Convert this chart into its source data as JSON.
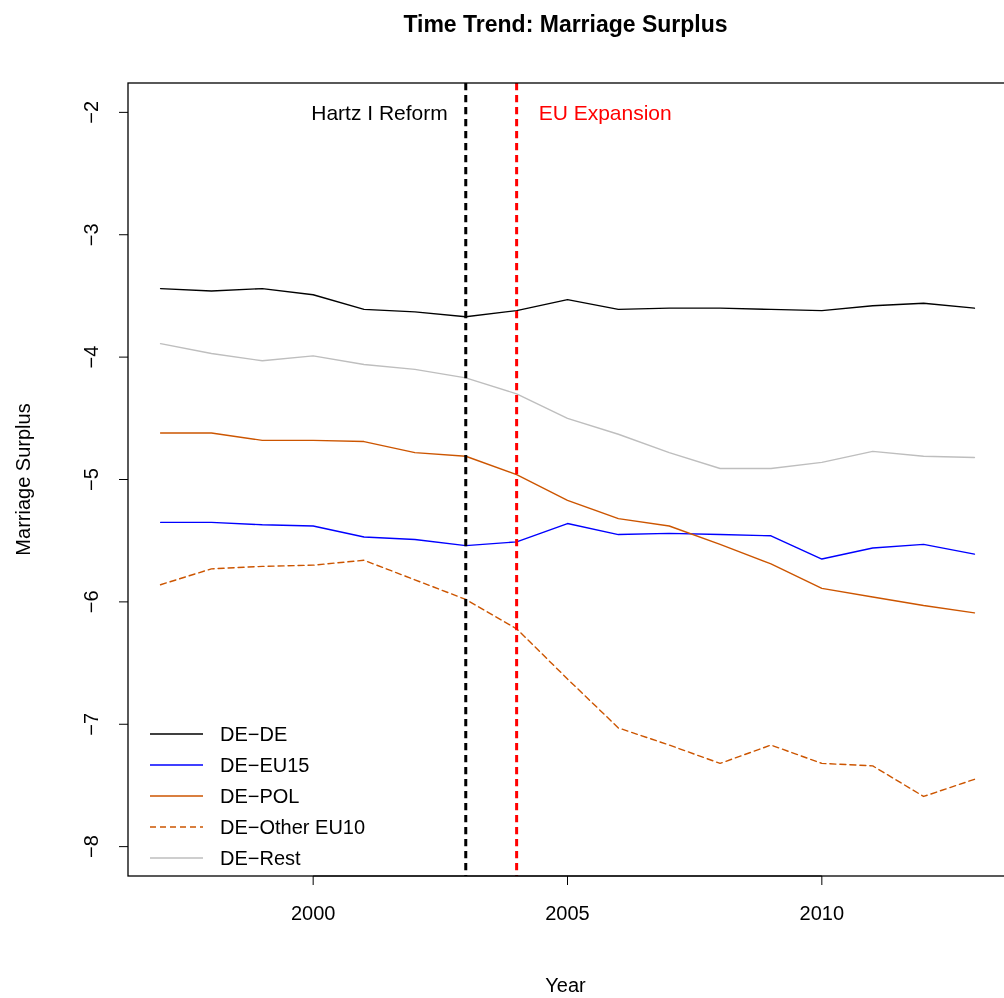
{
  "chart_data": {
    "type": "line",
    "title": "Time Trend: Marriage Surplus",
    "xlabel": "Year",
    "ylabel": "Marriage Surplus",
    "x": [
      1997,
      1998,
      1999,
      2000,
      2001,
      2002,
      2003,
      2004,
      2005,
      2006,
      2007,
      2008,
      2009,
      2010,
      2011,
      2012,
      2013
    ],
    "xlim": [
      1996.36,
      2013.64
    ],
    "xticks": [
      2000,
      2005,
      2010
    ],
    "ylim": [
      -8.24,
      -1.76
    ],
    "yticks": [
      -8,
      -7,
      -6,
      -5,
      -4,
      -3,
      -2
    ],
    "grid": false,
    "legend": "bottom left",
    "marker": "none",
    "series": [
      {
        "name": "DE−DE",
        "color": "#000000",
        "line_style": "solid",
        "values": [
          -3.44,
          -3.46,
          -3.44,
          -3.49,
          -3.61,
          -3.63,
          -3.67,
          -3.62,
          -3.53,
          -3.61,
          -3.6,
          -3.6,
          -3.61,
          -3.62,
          -3.58,
          -3.56,
          -3.6
        ]
      },
      {
        "name": "DE−EU15",
        "color": "#0000ff",
        "line_style": "solid",
        "values": [
          -5.35,
          -5.35,
          -5.37,
          -5.38,
          -5.47,
          -5.49,
          -5.54,
          -5.51,
          -5.36,
          -5.45,
          -5.44,
          -5.45,
          -5.46,
          -5.65,
          -5.56,
          -5.53,
          -5.61
        ]
      },
      {
        "name": "DE−POL",
        "color": "#cc5500",
        "line_style": "solid",
        "values": [
          -4.62,
          -4.62,
          -4.68,
          -4.68,
          -4.69,
          -4.78,
          -4.81,
          -4.96,
          -5.17,
          -5.32,
          -5.38,
          -5.53,
          -5.69,
          -5.89,
          -5.96,
          -6.03,
          -6.09
        ]
      },
      {
        "name": "DE−Other EU10",
        "color": "#cc5500",
        "line_style": "dashed",
        "values": [
          -5.86,
          -5.73,
          -5.71,
          -5.7,
          -5.66,
          -5.82,
          -5.98,
          -6.22,
          -6.63,
          -7.03,
          -7.17,
          -7.32,
          -7.17,
          -7.32,
          -7.34,
          -7.59,
          -7.45
        ]
      },
      {
        "name": "DE−Rest",
        "color": "#bebebe",
        "line_style": "solid",
        "values": [
          -3.89,
          -3.97,
          -4.03,
          -3.99,
          -4.06,
          -4.1,
          -4.17,
          -4.3,
          -4.5,
          -4.63,
          -4.78,
          -4.91,
          -4.91,
          -4.86,
          -4.77,
          -4.81,
          -4.82
        ]
      }
    ],
    "ref_lines": [
      {
        "axis": "x",
        "value": 2003,
        "label": "Hartz I Reform",
        "color": "#000000",
        "line_style": "dashed"
      },
      {
        "axis": "x",
        "value": 2004,
        "label": "EU Expansion",
        "color": "#ff0000",
        "line_style": "dashed"
      }
    ]
  }
}
